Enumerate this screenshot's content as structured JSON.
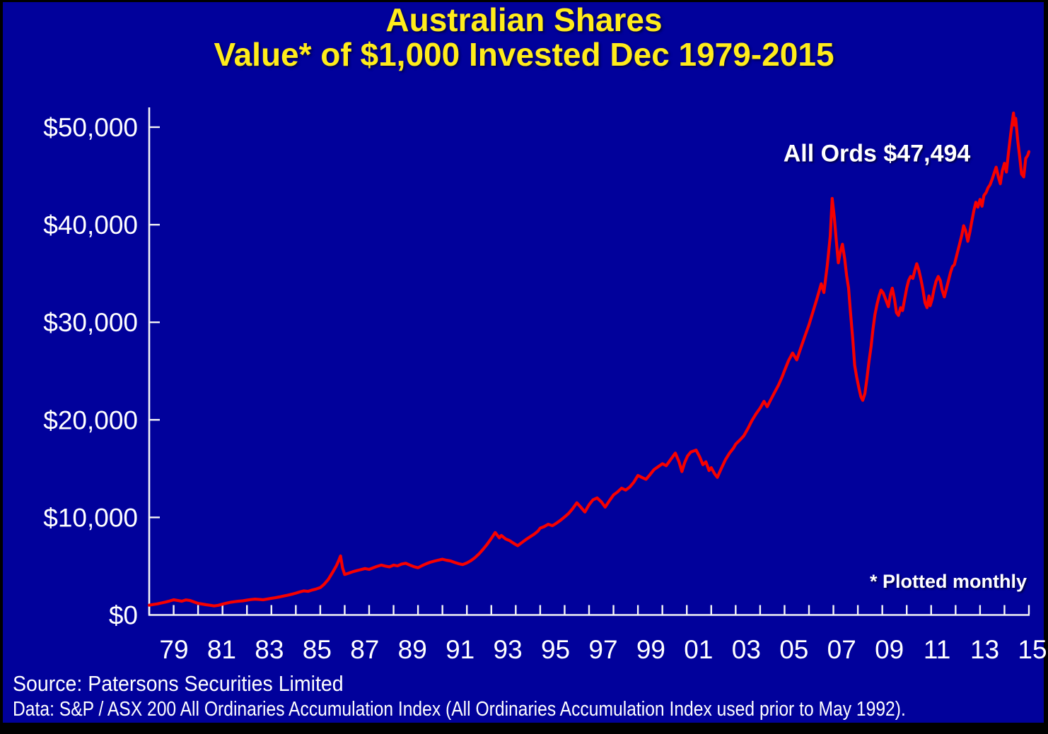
{
  "title": {
    "line1": "Australian Shares",
    "line2": "Value* of $1,000 Invested Dec 1979-2015"
  },
  "annotations": {
    "series_label": "All Ords $47,494",
    "plot_note": "* Plotted monthly"
  },
  "footer": {
    "source": "Source: Patersons Securities Limited",
    "data_note": "Data: S&P / ASX 200 All Ordinaries Accumulation Index (All Ordinaries Accumulation Index used prior to May 1992)."
  },
  "colors": {
    "background": "#01019B",
    "border": "#000000",
    "title": "#FFEC1B",
    "line": "#F60000",
    "axis": "#F5F5F5",
    "text": "#FFFFFF"
  },
  "chart_data": {
    "type": "line",
    "title": "Australian Shares — Value* of $1,000 Invested Dec 1979-2015",
    "xlabel": "",
    "ylabel": "",
    "grid": false,
    "legend": "none",
    "plot_frequency": "monthly",
    "x_domain": [
      1979.92,
      2015.92
    ],
    "ylim": [
      0,
      50000
    ],
    "y_axis": {
      "tick_interval": 10000,
      "tick_values": [
        0,
        10000,
        20000,
        30000,
        40000,
        50000
      ],
      "tick_labels": [
        "$0",
        "$10,000",
        "$20,000",
        "$30,000",
        "$40,000",
        "$50,000"
      ]
    },
    "x_axis": {
      "minor_tick_every_years": 1,
      "label_every_years": 2,
      "tick_labels": [
        "79",
        "81",
        "83",
        "85",
        "87",
        "89",
        "91",
        "93",
        "95",
        "97",
        "99",
        "01",
        "03",
        "05",
        "07",
        "09",
        "11",
        "13",
        "15"
      ]
    },
    "series": [
      {
        "name": "All Ords",
        "final_value": 47494,
        "points": [
          [
            1979.92,
            1000
          ],
          [
            1980.08,
            1070
          ],
          [
            1980.25,
            1140
          ],
          [
            1980.42,
            1230
          ],
          [
            1980.58,
            1320
          ],
          [
            1980.75,
            1430
          ],
          [
            1980.92,
            1560
          ],
          [
            1981.08,
            1490
          ],
          [
            1981.25,
            1410
          ],
          [
            1981.42,
            1540
          ],
          [
            1981.58,
            1490
          ],
          [
            1981.75,
            1340
          ],
          [
            1981.92,
            1190
          ],
          [
            1982.08,
            1120
          ],
          [
            1982.25,
            1050
          ],
          [
            1982.42,
            990
          ],
          [
            1982.58,
            930
          ],
          [
            1982.75,
            990
          ],
          [
            1982.92,
            1110
          ],
          [
            1983.08,
            1210
          ],
          [
            1983.25,
            1300
          ],
          [
            1983.42,
            1360
          ],
          [
            1983.58,
            1410
          ],
          [
            1983.75,
            1450
          ],
          [
            1983.92,
            1520
          ],
          [
            1984.08,
            1580
          ],
          [
            1984.25,
            1620
          ],
          [
            1984.42,
            1590
          ],
          [
            1984.58,
            1560
          ],
          [
            1984.75,
            1630
          ],
          [
            1984.92,
            1710
          ],
          [
            1985.08,
            1770
          ],
          [
            1985.25,
            1850
          ],
          [
            1985.42,
            1940
          ],
          [
            1985.58,
            2020
          ],
          [
            1985.75,
            2120
          ],
          [
            1985.92,
            2240
          ],
          [
            1986.08,
            2360
          ],
          [
            1986.25,
            2470
          ],
          [
            1986.42,
            2420
          ],
          [
            1986.58,
            2550
          ],
          [
            1986.75,
            2660
          ],
          [
            1986.92,
            2800
          ],
          [
            1987.08,
            3150
          ],
          [
            1987.25,
            3650
          ],
          [
            1987.42,
            4350
          ],
          [
            1987.58,
            5050
          ],
          [
            1987.67,
            5550
          ],
          [
            1987.75,
            6050
          ],
          [
            1987.83,
            4850
          ],
          [
            1987.92,
            4150
          ],
          [
            1988.08,
            4280
          ],
          [
            1988.25,
            4430
          ],
          [
            1988.42,
            4550
          ],
          [
            1988.58,
            4650
          ],
          [
            1988.75,
            4760
          ],
          [
            1988.92,
            4670
          ],
          [
            1989.08,
            4830
          ],
          [
            1989.25,
            4990
          ],
          [
            1989.42,
            5110
          ],
          [
            1989.58,
            5010
          ],
          [
            1989.75,
            4930
          ],
          [
            1989.92,
            5110
          ],
          [
            1990.08,
            5030
          ],
          [
            1990.25,
            5220
          ],
          [
            1990.42,
            5300
          ],
          [
            1990.58,
            5120
          ],
          [
            1990.75,
            4950
          ],
          [
            1990.92,
            4840
          ],
          [
            1991.08,
            5050
          ],
          [
            1991.25,
            5240
          ],
          [
            1991.42,
            5400
          ],
          [
            1991.58,
            5510
          ],
          [
            1991.75,
            5620
          ],
          [
            1991.92,
            5710
          ],
          [
            1992.08,
            5610
          ],
          [
            1992.25,
            5540
          ],
          [
            1992.42,
            5390
          ],
          [
            1992.58,
            5260
          ],
          [
            1992.75,
            5160
          ],
          [
            1992.92,
            5340
          ],
          [
            1993.08,
            5560
          ],
          [
            1993.25,
            5870
          ],
          [
            1993.42,
            6270
          ],
          [
            1993.58,
            6720
          ],
          [
            1993.75,
            7250
          ],
          [
            1993.92,
            7850
          ],
          [
            1994.08,
            8450
          ],
          [
            1994.17,
            8150
          ],
          [
            1994.25,
            7900
          ],
          [
            1994.33,
            8150
          ],
          [
            1994.5,
            7800
          ],
          [
            1994.67,
            7620
          ],
          [
            1994.83,
            7350
          ],
          [
            1995.0,
            7100
          ],
          [
            1995.17,
            7420
          ],
          [
            1995.33,
            7720
          ],
          [
            1995.5,
            8000
          ],
          [
            1995.67,
            8280
          ],
          [
            1995.83,
            8600
          ],
          [
            1995.92,
            8900
          ],
          [
            1996.08,
            9050
          ],
          [
            1996.25,
            9300
          ],
          [
            1996.42,
            9150
          ],
          [
            1996.58,
            9400
          ],
          [
            1996.75,
            9700
          ],
          [
            1996.92,
            10050
          ],
          [
            1997.08,
            10400
          ],
          [
            1997.25,
            10900
          ],
          [
            1997.42,
            11500
          ],
          [
            1997.58,
            11050
          ],
          [
            1997.75,
            10550
          ],
          [
            1997.92,
            11300
          ],
          [
            1998.08,
            11800
          ],
          [
            1998.25,
            12000
          ],
          [
            1998.42,
            11600
          ],
          [
            1998.58,
            11050
          ],
          [
            1998.75,
            11700
          ],
          [
            1998.92,
            12300
          ],
          [
            1999.08,
            12600
          ],
          [
            1999.25,
            13000
          ],
          [
            1999.42,
            12800
          ],
          [
            1999.58,
            13100
          ],
          [
            1999.75,
            13600
          ],
          [
            1999.92,
            14300
          ],
          [
            2000.08,
            14100
          ],
          [
            2000.25,
            13900
          ],
          [
            2000.42,
            14400
          ],
          [
            2000.58,
            14900
          ],
          [
            2000.75,
            15200
          ],
          [
            2000.92,
            15500
          ],
          [
            2001.08,
            15300
          ],
          [
            2001.25,
            15900
          ],
          [
            2001.45,
            16600
          ],
          [
            2001.6,
            15700
          ],
          [
            2001.72,
            14700
          ],
          [
            2001.83,
            15600
          ],
          [
            2001.95,
            16300
          ],
          [
            2002.08,
            16700
          ],
          [
            2002.3,
            16900
          ],
          [
            2002.45,
            16200
          ],
          [
            2002.58,
            15400
          ],
          [
            2002.7,
            15700
          ],
          [
            2002.83,
            14800
          ],
          [
            2002.92,
            15100
          ],
          [
            2003.05,
            14500
          ],
          [
            2003.17,
            14100
          ],
          [
            2003.33,
            15000
          ],
          [
            2003.5,
            15900
          ],
          [
            2003.67,
            16600
          ],
          [
            2003.83,
            17100
          ],
          [
            2003.92,
            17500
          ],
          [
            2004.08,
            17900
          ],
          [
            2004.25,
            18350
          ],
          [
            2004.42,
            19100
          ],
          [
            2004.58,
            19900
          ],
          [
            2004.75,
            20600
          ],
          [
            2004.92,
            21200
          ],
          [
            2005.08,
            21900
          ],
          [
            2005.21,
            21350
          ],
          [
            2005.33,
            21950
          ],
          [
            2005.5,
            22750
          ],
          [
            2005.67,
            23550
          ],
          [
            2005.83,
            24450
          ],
          [
            2005.92,
            25050
          ],
          [
            2006.08,
            26050
          ],
          [
            2006.25,
            26850
          ],
          [
            2006.42,
            26150
          ],
          [
            2006.58,
            27350
          ],
          [
            2006.75,
            28550
          ],
          [
            2006.92,
            29750
          ],
          [
            2007.08,
            31050
          ],
          [
            2007.25,
            32450
          ],
          [
            2007.42,
            33950
          ],
          [
            2007.53,
            33050
          ],
          [
            2007.67,
            35850
          ],
          [
            2007.79,
            38850
          ],
          [
            2007.87,
            42700
          ],
          [
            2007.96,
            40700
          ],
          [
            2008.04,
            38300
          ],
          [
            2008.12,
            36100
          ],
          [
            2008.21,
            37300
          ],
          [
            2008.29,
            38000
          ],
          [
            2008.38,
            36500
          ],
          [
            2008.46,
            34800
          ],
          [
            2008.54,
            33500
          ],
          [
            2008.62,
            31000
          ],
          [
            2008.71,
            28300
          ],
          [
            2008.79,
            25600
          ],
          [
            2008.87,
            24400
          ],
          [
            2008.96,
            23300
          ],
          [
            2009.04,
            22400
          ],
          [
            2009.12,
            22000
          ],
          [
            2009.21,
            22700
          ],
          [
            2009.29,
            24200
          ],
          [
            2009.37,
            25900
          ],
          [
            2009.46,
            27500
          ],
          [
            2009.54,
            29300
          ],
          [
            2009.62,
            30800
          ],
          [
            2009.71,
            31900
          ],
          [
            2009.79,
            32700
          ],
          [
            2009.87,
            33300
          ],
          [
            2009.96,
            33000
          ],
          [
            2010.08,
            32200
          ],
          [
            2010.17,
            31600
          ],
          [
            2010.25,
            32800
          ],
          [
            2010.33,
            33500
          ],
          [
            2010.42,
            32400
          ],
          [
            2010.5,
            31000
          ],
          [
            2010.58,
            30700
          ],
          [
            2010.67,
            31500
          ],
          [
            2010.75,
            31200
          ],
          [
            2010.83,
            32300
          ],
          [
            2010.92,
            33500
          ],
          [
            2011.0,
            34300
          ],
          [
            2011.08,
            34700
          ],
          [
            2011.17,
            34500
          ],
          [
            2011.25,
            35300
          ],
          [
            2011.33,
            36000
          ],
          [
            2011.42,
            35300
          ],
          [
            2011.5,
            34400
          ],
          [
            2011.58,
            33400
          ],
          [
            2011.67,
            32000
          ],
          [
            2011.75,
            31500
          ],
          [
            2011.83,
            32700
          ],
          [
            2011.88,
            31700
          ],
          [
            2011.96,
            32400
          ],
          [
            2012.04,
            33400
          ],
          [
            2012.12,
            34200
          ],
          [
            2012.21,
            34700
          ],
          [
            2012.29,
            34300
          ],
          [
            2012.37,
            33300
          ],
          [
            2012.46,
            32600
          ],
          [
            2012.54,
            33400
          ],
          [
            2012.62,
            34200
          ],
          [
            2012.71,
            35100
          ],
          [
            2012.79,
            35700
          ],
          [
            2012.87,
            35900
          ],
          [
            2012.96,
            36800
          ],
          [
            2013.08,
            38000
          ],
          [
            2013.17,
            38900
          ],
          [
            2013.25,
            39900
          ],
          [
            2013.33,
            39400
          ],
          [
            2013.42,
            38300
          ],
          [
            2013.5,
            39200
          ],
          [
            2013.58,
            40300
          ],
          [
            2013.67,
            41500
          ],
          [
            2013.75,
            42300
          ],
          [
            2013.83,
            41800
          ],
          [
            2013.92,
            42600
          ],
          [
            2014.0,
            41900
          ],
          [
            2014.08,
            43000
          ],
          [
            2014.17,
            43300
          ],
          [
            2014.25,
            43800
          ],
          [
            2014.33,
            44100
          ],
          [
            2014.42,
            44700
          ],
          [
            2014.5,
            45300
          ],
          [
            2014.58,
            45900
          ],
          [
            2014.67,
            44900
          ],
          [
            2014.75,
            44200
          ],
          [
            2014.83,
            45500
          ],
          [
            2014.92,
            46300
          ],
          [
            2015.0,
            45400
          ],
          [
            2015.08,
            47300
          ],
          [
            2015.17,
            49200
          ],
          [
            2015.25,
            50700
          ],
          [
            2015.29,
            51450
          ],
          [
            2015.33,
            50200
          ],
          [
            2015.38,
            50900
          ],
          [
            2015.46,
            48700
          ],
          [
            2015.54,
            47000
          ],
          [
            2015.62,
            45200
          ],
          [
            2015.71,
            44900
          ],
          [
            2015.79,
            46800
          ],
          [
            2015.87,
            47100
          ],
          [
            2015.92,
            47494
          ]
        ]
      }
    ]
  }
}
